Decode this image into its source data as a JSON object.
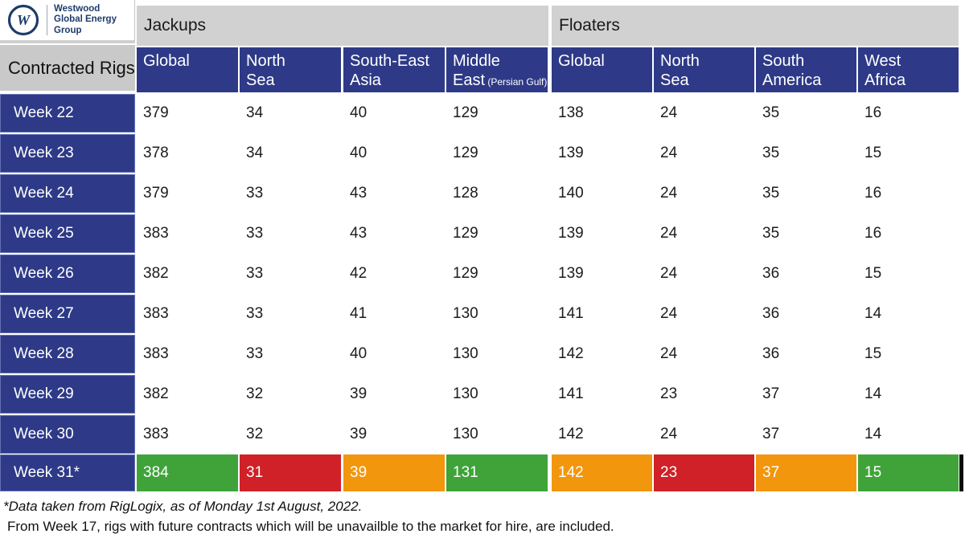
{
  "brand": {
    "name_lines": [
      "Westwood",
      "Global Energy",
      "Group"
    ]
  },
  "chart_data": {
    "type": "table",
    "title": "Contracted Rigs",
    "group_headers": [
      {
        "label": "Jackups",
        "span": 4
      },
      {
        "label": "Floaters",
        "span": 4
      }
    ],
    "columns": [
      {
        "key": "jackups-global",
        "group": "Jackups",
        "lines": [
          "Global"
        ]
      },
      {
        "key": "jackups-north-sea",
        "group": "Jackups",
        "lines": [
          "North",
          "Sea"
        ]
      },
      {
        "key": "jackups-south-east-asia",
        "group": "Jackups",
        "lines": [
          "South-East",
          "Asia"
        ]
      },
      {
        "key": "jackups-middle-east",
        "group": "Jackups",
        "lines": [
          "Middle",
          "East"
        ],
        "sub": "(Persian Gulf)"
      },
      {
        "key": "floaters-global",
        "group": "Floaters",
        "lines": [
          "Global"
        ]
      },
      {
        "key": "floaters-north-sea",
        "group": "Floaters",
        "lines": [
          "North",
          "Sea"
        ]
      },
      {
        "key": "floaters-south-america",
        "group": "Floaters",
        "lines": [
          "South",
          "America"
        ]
      },
      {
        "key": "floaters-west-africa",
        "group": "Floaters",
        "lines": [
          "West",
          "Africa"
        ]
      }
    ],
    "rows": [
      {
        "label": "Week 22",
        "values": [
          379,
          34,
          40,
          129,
          138,
          24,
          35,
          16
        ]
      },
      {
        "label": "Week 23",
        "values": [
          378,
          34,
          40,
          129,
          139,
          24,
          35,
          15
        ]
      },
      {
        "label": "Week 24",
        "values": [
          379,
          33,
          43,
          128,
          140,
          24,
          35,
          16
        ]
      },
      {
        "label": "Week 25",
        "values": [
          383,
          33,
          43,
          129,
          139,
          24,
          35,
          16
        ]
      },
      {
        "label": "Week 26",
        "values": [
          382,
          33,
          42,
          129,
          139,
          24,
          36,
          15
        ]
      },
      {
        "label": "Week 27",
        "values": [
          383,
          33,
          41,
          130,
          141,
          24,
          36,
          14
        ]
      },
      {
        "label": "Week 28",
        "values": [
          383,
          33,
          40,
          130,
          142,
          24,
          36,
          15
        ]
      },
      {
        "label": "Week 29",
        "values": [
          382,
          32,
          39,
          130,
          141,
          23,
          37,
          14
        ]
      },
      {
        "label": "Week 30",
        "values": [
          383,
          32,
          39,
          130,
          142,
          24,
          37,
          14
        ]
      }
    ],
    "highlight_row": {
      "label": "Week 31*",
      "values": [
        384,
        31,
        39,
        131,
        142,
        23,
        37,
        15
      ],
      "colors": [
        "green",
        "red",
        "orange",
        "green",
        "orange",
        "red",
        "orange",
        "green"
      ]
    },
    "footnotes": [
      "*Data taken from RigLogix, as of Monday 1st August, 2022.",
      "From Week 17, rigs with future contracts which will be unavailble to the market for hire, are included."
    ]
  },
  "colors": {
    "navy": "#2e3a87",
    "navy_border": "#6470b2",
    "band_gray": "#d1d1d1",
    "corner_gray": "#c9c9c9",
    "green": "#3fa33a",
    "red": "#cf2127",
    "orange": "#f2960d",
    "logo_navy": "#1d3c6b",
    "text_dark": "#1c1c1c"
  }
}
